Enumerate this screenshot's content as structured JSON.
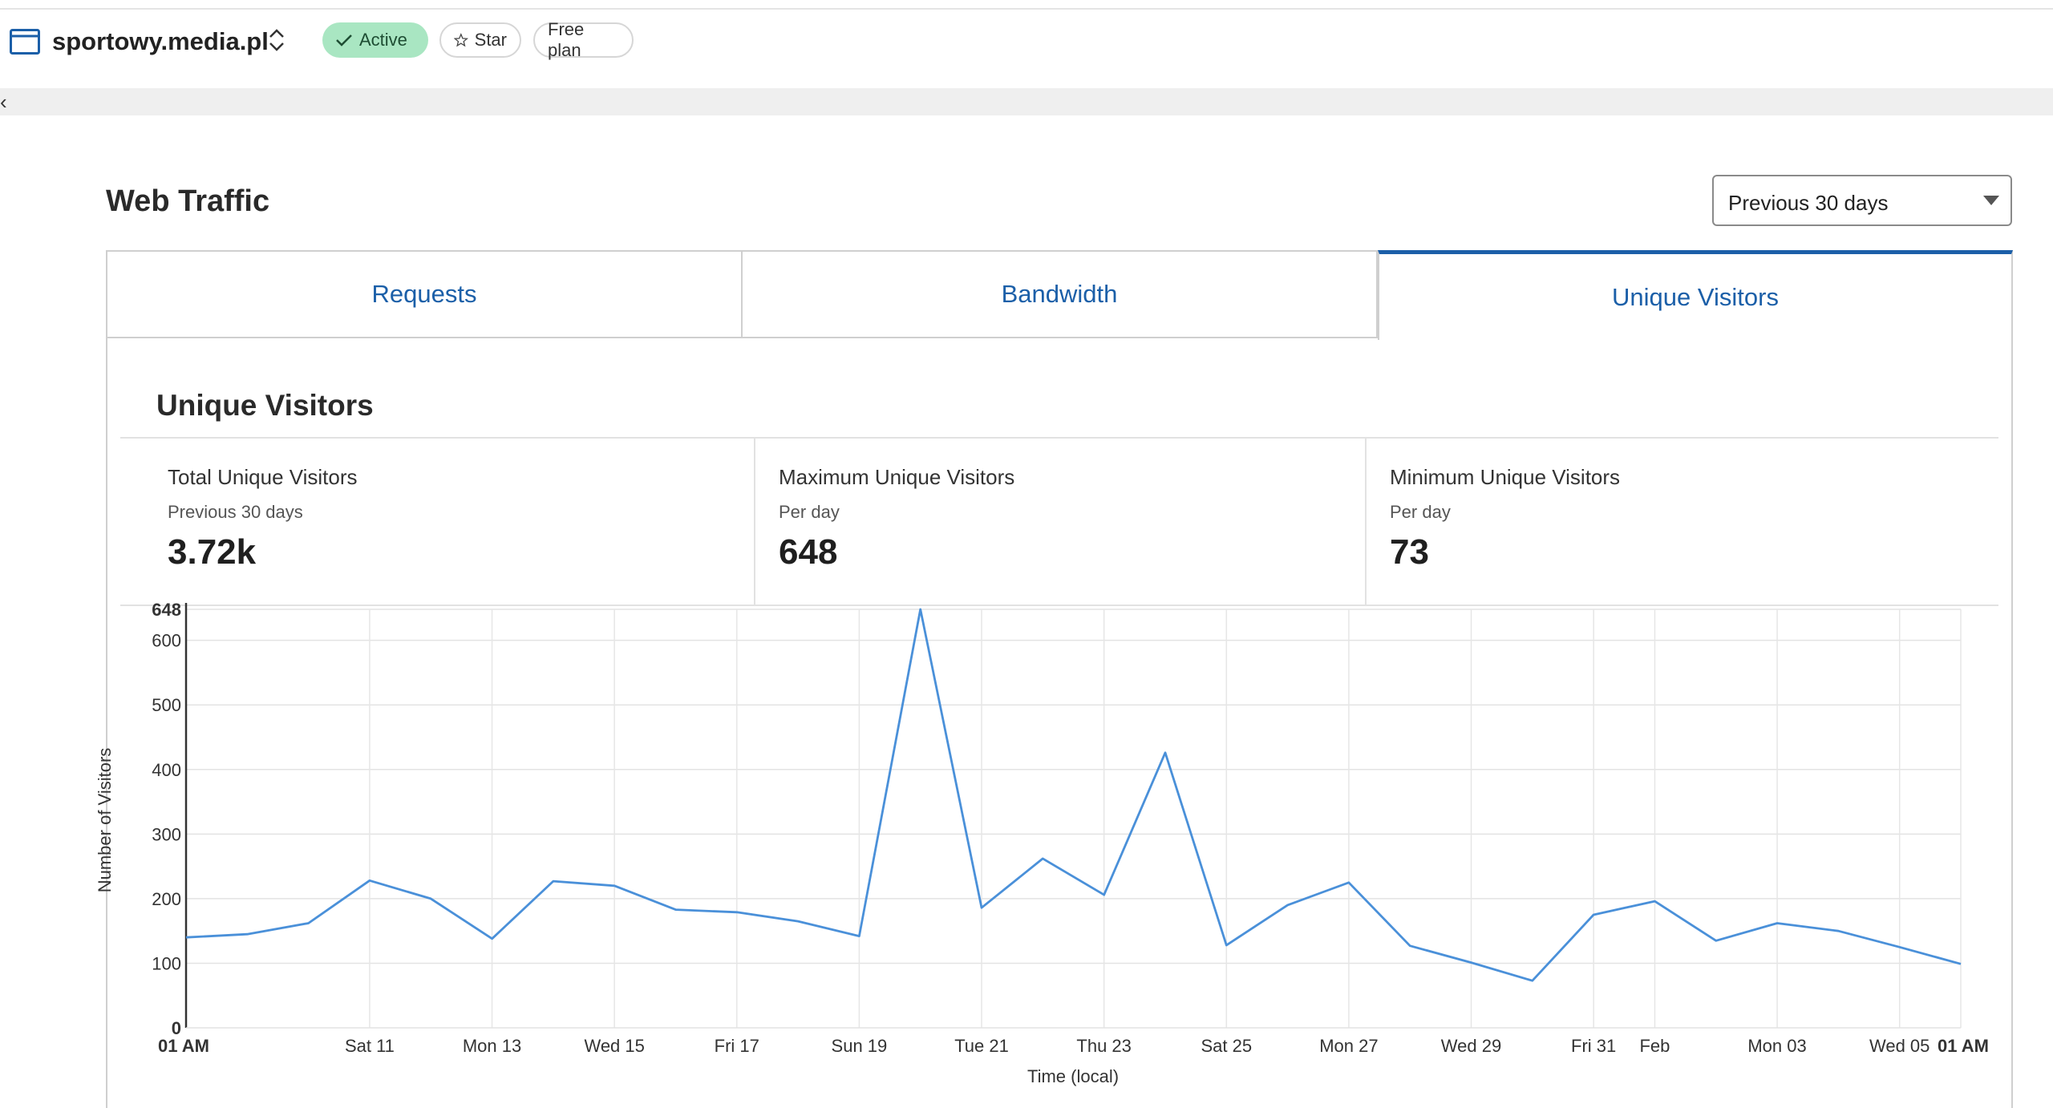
{
  "header": {
    "site_name": "sportowy.media.pl",
    "active_label": "Active",
    "star_label": "Star",
    "plan_label": "Free plan"
  },
  "web_traffic": {
    "title": "Web Traffic",
    "range_selected": "Previous 30 days",
    "tabs": [
      {
        "label": "Requests"
      },
      {
        "label": "Bandwidth"
      },
      {
        "label": "Unique Visitors"
      }
    ]
  },
  "unique_visitors": {
    "title": "Unique Visitors",
    "stats": [
      {
        "label": "Total Unique Visitors",
        "sub": "Previous 30 days",
        "value": "3.72k"
      },
      {
        "label": "Maximum Unique Visitors",
        "sub": "Per day",
        "value": "648"
      },
      {
        "label": "Minimum Unique Visitors",
        "sub": "Per day",
        "value": "73"
      }
    ]
  },
  "colors": {
    "accent": "#1b5fa8",
    "line": "#4a90d9",
    "active_badge": "#a9e6c2"
  },
  "chart_data": {
    "type": "line",
    "xlabel": "Time (local)",
    "ylabel": "Number of Visitors",
    "ylim": [
      0,
      648
    ],
    "y_ticks": [
      0,
      100,
      200,
      300,
      400,
      500,
      600,
      648
    ],
    "x_tick_labels": [
      {
        "label": "01 AM",
        "day": 0,
        "bold": true
      },
      {
        "label": "Sat 11",
        "day": 3
      },
      {
        "label": "Mon 13",
        "day": 5
      },
      {
        "label": "Wed 15",
        "day": 7
      },
      {
        "label": "Fri 17",
        "day": 9
      },
      {
        "label": "Sun 19",
        "day": 11
      },
      {
        "label": "Tue 21",
        "day": 13
      },
      {
        "label": "Thu 23",
        "day": 15
      },
      {
        "label": "Sat 25",
        "day": 17
      },
      {
        "label": "Mon 27",
        "day": 19
      },
      {
        "label": "Wed 29",
        "day": 21
      },
      {
        "label": "Fri 31",
        "day": 23
      },
      {
        "label": "Feb",
        "day": 24
      },
      {
        "label": "Mon 03",
        "day": 26
      },
      {
        "label": "Wed 05",
        "day": 28
      },
      {
        "label": "01 AM",
        "day": 29,
        "bold": true
      }
    ],
    "grid": true,
    "series": [
      {
        "values": [
          140,
          145,
          162,
          228,
          200,
          138,
          227,
          220,
          183,
          179,
          165,
          142,
          648,
          186,
          262,
          206,
          426,
          128,
          190,
          225,
          127,
          101,
          73,
          175,
          196,
          135,
          162,
          150,
          125,
          99
        ]
      }
    ]
  }
}
